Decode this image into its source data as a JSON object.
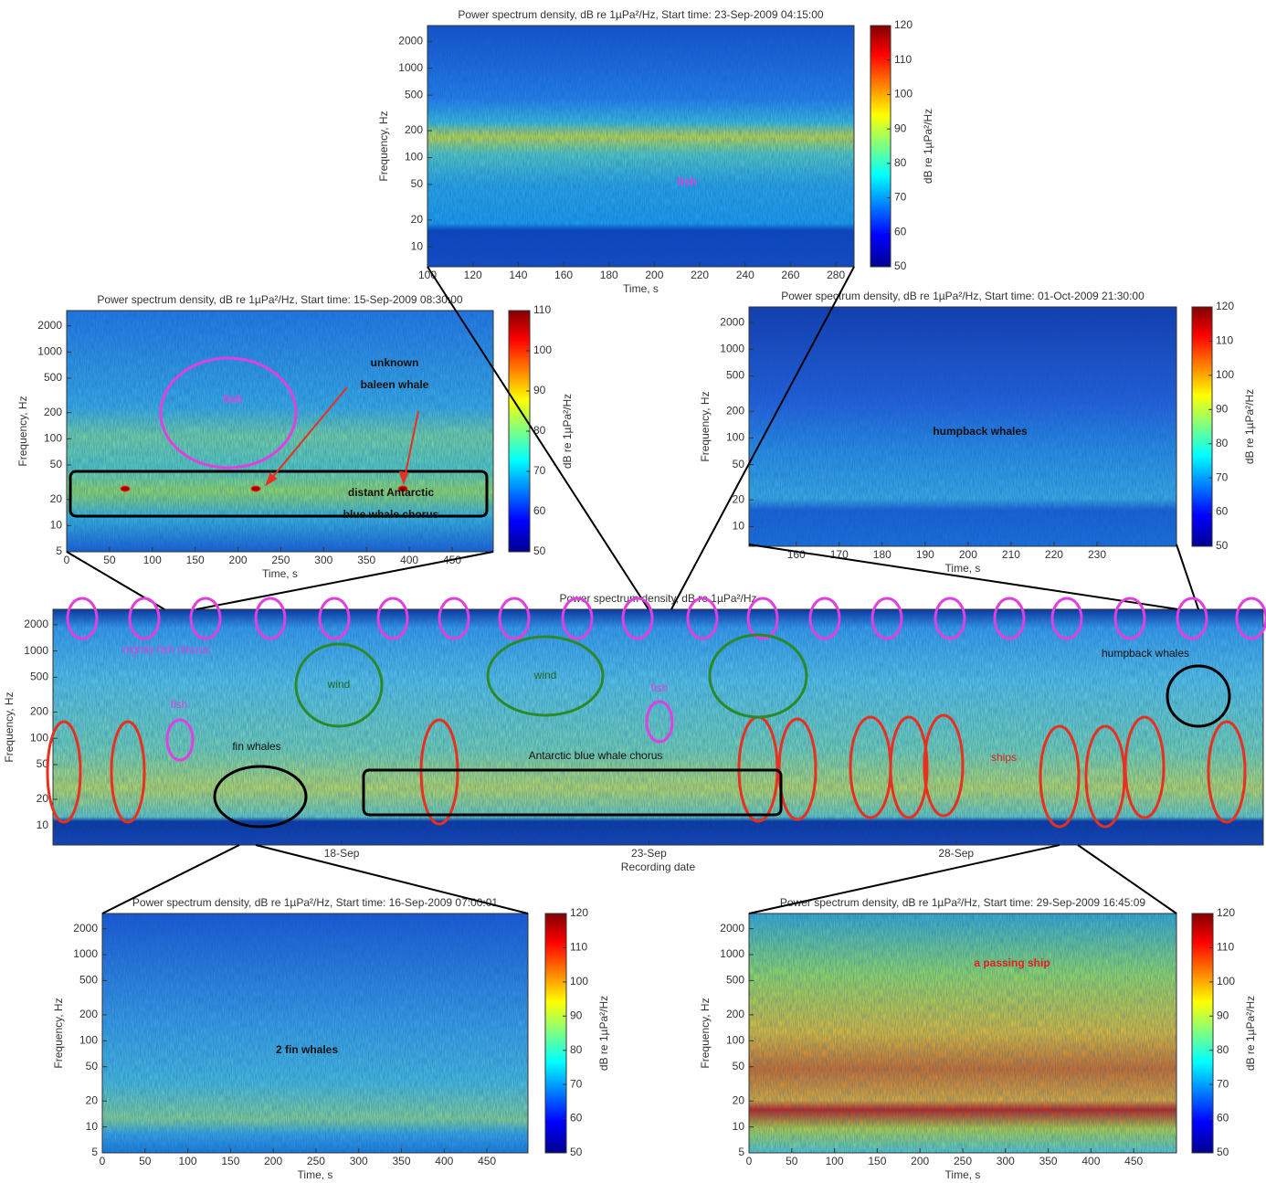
{
  "panels": [
    {
      "title": "Power spectrum density, dB re 1µPa²/Hz, Start time: 23-Sep-2009 04:15:00",
      "xlabel": "Time, s",
      "ylabel": "Frequency, Hz",
      "yscale": "log",
      "xlim": [
        100,
        288
      ],
      "ylim": [
        6,
        3000
      ],
      "xticks": [
        100,
        120,
        140,
        160,
        180,
        200,
        220,
        240,
        260,
        280
      ],
      "yticks": [
        10,
        20,
        50,
        100,
        200,
        500,
        1000,
        2000
      ],
      "colorbar": {
        "label": "dB re 1µPa²/Hz",
        "lim": [
          50,
          120
        ],
        "ticks": [
          50,
          60,
          70,
          80,
          90,
          100,
          110,
          120
        ]
      },
      "annotations": [
        [
          "fish"
        ]
      ]
    },
    {
      "title": "Power spectrum density, dB re 1µPa²/Hz, Start time: 15-Sep-2009 08:30:00",
      "xlabel": "Time, s",
      "ylabel": "Frequency, Hz",
      "yscale": "log",
      "xlim": [
        0,
        498
      ],
      "ylim": [
        5,
        3000
      ],
      "xticks": [
        0,
        50,
        100,
        150,
        200,
        250,
        300,
        350,
        400,
        450
      ],
      "yticks": [
        5,
        10,
        20,
        50,
        100,
        200,
        500,
        1000,
        2000
      ],
      "colorbar": {
        "label": "dB re 1µPa²/Hz",
        "lim": [
          50,
          110
        ],
        "ticks": [
          50,
          60,
          70,
          80,
          90,
          100,
          110
        ]
      },
      "annotations": [
        [
          "fish"
        ],
        [
          "unknown",
          "baleen whale"
        ],
        [
          "distant Antarctic",
          "blue whale chorus"
        ]
      ]
    },
    {
      "title": "Power spectrum density, dB re 1µPa²/Hz, Start time: 01-Oct-2009 21:30:00",
      "xlabel": "Time, s",
      "ylabel": "Frequency, Hz",
      "yscale": "log",
      "xlim": [
        149,
        248.5
      ],
      "ylim": [
        6,
        3000
      ],
      "xticks": [
        160,
        170,
        180,
        190,
        200,
        210,
        220,
        230
      ],
      "yticks": [
        10,
        20,
        50,
        100,
        200,
        500,
        1000,
        2000
      ],
      "colorbar": {
        "label": "dB re 1µPa²/Hz",
        "lim": [
          50,
          120
        ],
        "ticks": [
          50,
          60,
          70,
          80,
          90,
          100,
          110,
          120
        ]
      },
      "annotations": [
        [
          "humpback whales"
        ]
      ]
    },
    {
      "title": "Power spectrum density, dB re 1µPa²/Hz",
      "xlabel": "Recording date",
      "ylabel": "Frequency, Hz",
      "yscale": "log",
      "xlim": [
        13.3,
        33.0
      ],
      "ylim": [
        6,
        3000
      ],
      "xticks": [
        {
          "value": 18,
          "label": "18-Sep"
        },
        {
          "value": 23,
          "label": "23-Sep"
        },
        {
          "value": 28,
          "label": "28-Sep"
        }
      ],
      "yticks": [
        10,
        20,
        50,
        100,
        200,
        500,
        1000,
        2000
      ],
      "annotations": [
        [
          "nightly fish chorus"
        ],
        [
          "fish"
        ],
        [
          "wind"
        ],
        [
          "wind"
        ],
        [
          "fish"
        ],
        [
          "fin whales"
        ],
        [
          "Antarctic blue whale chorus"
        ],
        [
          "humpback whales"
        ],
        [
          "ships"
        ]
      ]
    },
    {
      "title": "Power spectrum density, dB re 1µPa²/Hz, Start time: 16-Sep-2009 07:00:01",
      "xlabel": "Time, s",
      "ylabel": "Frequency, Hz",
      "yscale": "log",
      "xlim": [
        0,
        498
      ],
      "ylim": [
        5,
        3000
      ],
      "xticks": [
        0,
        50,
        100,
        150,
        200,
        250,
        300,
        350,
        400,
        450
      ],
      "yticks": [
        5,
        10,
        20,
        50,
        100,
        200,
        500,
        1000,
        2000
      ],
      "colorbar": {
        "label": "dB re 1µPa²/Hz",
        "lim": [
          50,
          120
        ],
        "ticks": [
          50,
          60,
          70,
          80,
          90,
          100,
          110,
          120
        ]
      },
      "annotations": [
        [
          "2 fin whales"
        ]
      ]
    },
    {
      "title": "Power spectrum density, dB re 1µPa²/Hz, Start time: 29-Sep-2009 16:45:09",
      "xlabel": "Time, s",
      "ylabel": "Frequency, Hz",
      "yscale": "log",
      "xlim": [
        0,
        500
      ],
      "ylim": [
        5,
        3000
      ],
      "xticks": [
        0,
        50,
        100,
        150,
        200,
        250,
        300,
        350,
        400,
        450
      ],
      "yticks": [
        5,
        10,
        20,
        50,
        100,
        200,
        500,
        1000,
        2000
      ],
      "colorbar": {
        "label": "dB re 1µPa²/Hz",
        "lim": [
          50,
          120
        ],
        "ticks": [
          50,
          60,
          70,
          80,
          90,
          100,
          110,
          120
        ]
      },
      "annotations": [
        [
          "a passing ship"
        ]
      ]
    }
  ]
}
